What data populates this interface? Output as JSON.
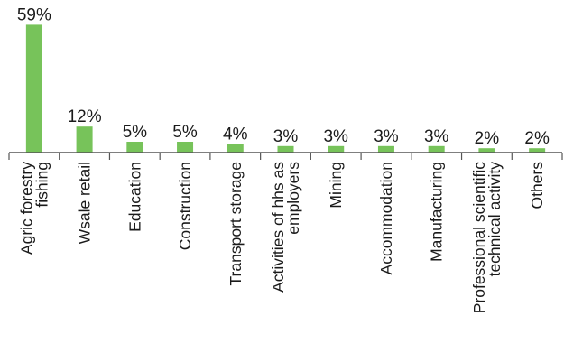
{
  "chart_data": {
    "type": "bar",
    "title": "",
    "xlabel": "",
    "ylabel": "",
    "bar_color": "#77c35a",
    "categories": [
      [
        "Agric forestry",
        "fishing"
      ],
      [
        "Wsale retail"
      ],
      [
        "Education"
      ],
      [
        "Construction"
      ],
      [
        "Transport storage"
      ],
      [
        "Activities of hhs as",
        "employers"
      ],
      [
        "Mining"
      ],
      [
        "Accommodation"
      ],
      [
        "Manufacturing"
      ],
      [
        "Professional scientific",
        "technical activity"
      ],
      [
        "Others"
      ]
    ],
    "values": [
      59,
      12,
      5,
      5,
      4,
      3,
      3,
      3,
      3,
      2,
      2
    ],
    "value_labels": [
      "59%",
      "12%",
      "5%",
      "5%",
      "4%",
      "3%",
      "3%",
      "3%",
      "3%",
      "2%",
      "2%"
    ]
  }
}
